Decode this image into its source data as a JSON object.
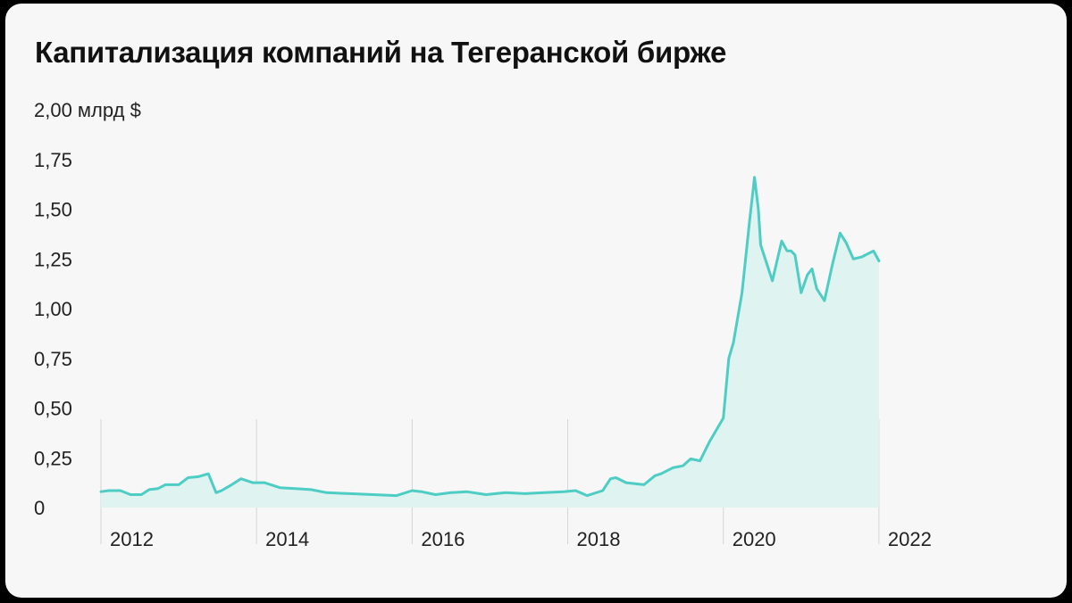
{
  "chart_data": {
    "type": "area",
    "title": "Капитализация компаний на Тегеранской бирже",
    "y_unit_label": "2,00 млрд $",
    "ylim": [
      0,
      2.0
    ],
    "y_ticks": [
      {
        "value": 2.0,
        "label": "2,00 млрд $"
      },
      {
        "value": 1.75,
        "label": "1,75"
      },
      {
        "value": 1.5,
        "label": "1,50"
      },
      {
        "value": 1.25,
        "label": "1,25"
      },
      {
        "value": 1.0,
        "label": "1,00"
      },
      {
        "value": 0.75,
        "label": "0,75"
      },
      {
        "value": 0.5,
        "label": "0,50"
      },
      {
        "value": 0.25,
        "label": "0,25"
      },
      {
        "value": 0,
        "label": "0"
      }
    ],
    "xlim": [
      2011.0,
      2022.0
    ],
    "x_ticks": [
      {
        "value": 2011.0,
        "label": "2012"
      },
      {
        "value": 2013.0,
        "label": "2014"
      },
      {
        "value": 2015.0,
        "label": "2016"
      },
      {
        "value": 2017.0,
        "label": "2018"
      },
      {
        "value": 2019.0,
        "label": "2020"
      },
      {
        "value": 2021.0,
        "label": "2022"
      }
    ],
    "grid": false,
    "colors": {
      "line": "#4ecdc4",
      "fill": "#dff3f1",
      "divider": "#d2d6d8"
    },
    "series": [
      {
        "x": [
          2011.0,
          2011.1,
          2011.25,
          2011.38,
          2011.52,
          2011.62,
          2011.73,
          2011.83,
          2012.0,
          2012.12,
          2012.25,
          2012.38,
          2012.48,
          2012.55,
          2012.68,
          2012.8,
          2012.95,
          2013.1,
          2013.3,
          2013.5,
          2013.7,
          2013.9,
          2014.2,
          2014.5,
          2014.8,
          2015.0,
          2015.12,
          2015.3,
          2015.5,
          2015.7,
          2015.95,
          2016.2,
          2016.45,
          2016.7,
          2016.95,
          2017.1,
          2017.25,
          2017.45,
          2017.55,
          2017.62,
          2017.75,
          2017.98,
          2018.12,
          2018.2,
          2018.35,
          2018.48,
          2018.58,
          2018.7,
          2018.82,
          2019.0,
          2019.07,
          2019.13,
          2019.24,
          2019.34,
          2019.4,
          2019.45,
          2019.48,
          2019.63,
          2019.75,
          2019.82,
          2019.87,
          2019.92,
          2020.0,
          2020.08,
          2020.14,
          2020.2,
          2020.3,
          2020.4,
          2020.5,
          2020.58,
          2020.67,
          2020.78,
          2020.93,
          2021.0
        ],
        "y": [
          0.08,
          0.085,
          0.085,
          0.065,
          0.065,
          0.09,
          0.095,
          0.115,
          0.115,
          0.15,
          0.155,
          0.17,
          0.075,
          0.085,
          0.115,
          0.145,
          0.125,
          0.125,
          0.1,
          0.095,
          0.09,
          0.075,
          0.07,
          0.065,
          0.06,
          0.085,
          0.08,
          0.065,
          0.075,
          0.08,
          0.065,
          0.075,
          0.07,
          0.075,
          0.08,
          0.085,
          0.06,
          0.085,
          0.145,
          0.15,
          0.125,
          0.115,
          0.16,
          0.17,
          0.2,
          0.21,
          0.245,
          0.235,
          0.33,
          0.45,
          0.75,
          0.83,
          1.08,
          1.45,
          1.66,
          1.5,
          1.32,
          1.14,
          1.34,
          1.29,
          1.29,
          1.27,
          1.08,
          1.17,
          1.2,
          1.1,
          1.04,
          1.22,
          1.38,
          1.33,
          1.25,
          1.26,
          1.29,
          1.24
        ]
      }
    ]
  }
}
